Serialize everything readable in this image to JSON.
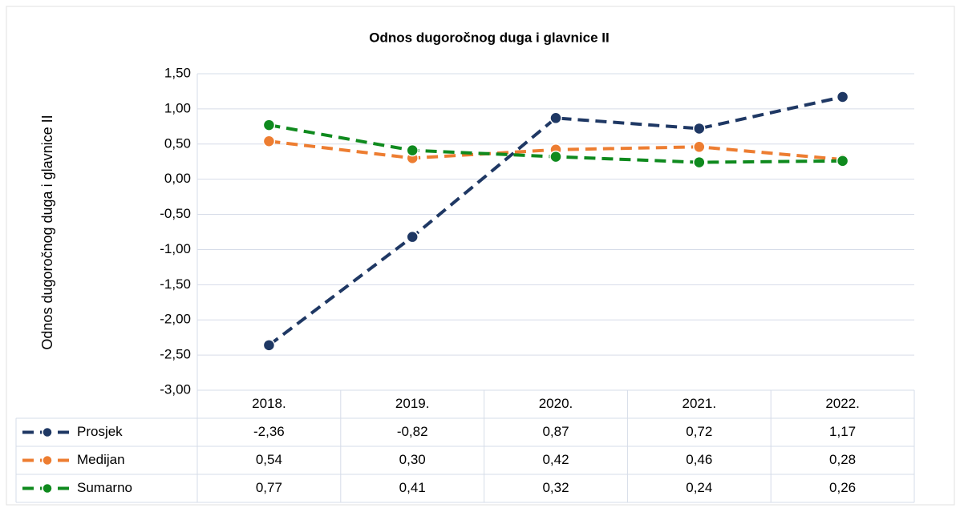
{
  "chart_data": {
    "type": "line",
    "title": "Odnos dugoročnog duga i glavnice II",
    "y_label": "Odnos dugoročnog duga i glavnice II",
    "categories": [
      "2018.",
      "2019.",
      "2020.",
      "2021.",
      "2022."
    ],
    "series": [
      {
        "name": "Prosjek",
        "color": "#1f3864",
        "values": [
          -2.36,
          -0.82,
          0.87,
          0.72,
          1.17
        ],
        "value_labels": [
          "-2,36",
          "-0,82",
          "0,87",
          "0,72",
          "1,17"
        ]
      },
      {
        "name": "Medijan",
        "color": "#ed7d31",
        "values": [
          0.54,
          0.3,
          0.42,
          0.46,
          0.28
        ],
        "value_labels": [
          "0,54",
          "0,30",
          "0,42",
          "0,46",
          "0,28"
        ]
      },
      {
        "name": "Sumarno",
        "color": "#0f8a1e",
        "values": [
          0.77,
          0.41,
          0.32,
          0.24,
          0.26
        ],
        "value_labels": [
          "0,77",
          "0,41",
          "0,32",
          "0,24",
          "0,26"
        ]
      }
    ],
    "ylim": [
      -3,
      1.5
    ],
    "yticks": [
      {
        "value": -3,
        "label": "-3,00"
      },
      {
        "value": -2.5,
        "label": "-2,50"
      },
      {
        "value": -2,
        "label": "-2,00"
      },
      {
        "value": -1.5,
        "label": "-1,50"
      },
      {
        "value": -1,
        "label": "-1,00"
      },
      {
        "value": -0.5,
        "label": "-0,50"
      },
      {
        "value": 0,
        "label": "0,00"
      },
      {
        "value": 0.5,
        "label": "0,50"
      },
      {
        "value": 1,
        "label": "1,00"
      },
      {
        "value": 1.5,
        "label": "1,50"
      }
    ],
    "grid": true
  }
}
